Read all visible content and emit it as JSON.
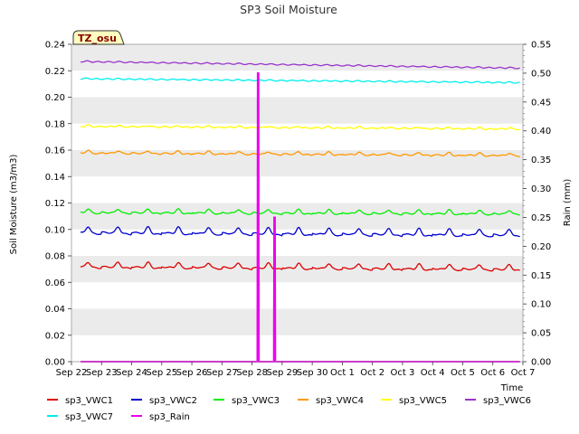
{
  "chart_data": {
    "type": "line",
    "title": "SP3 Soil Moisture",
    "badge": "TZ_osu",
    "xlabel": "Time",
    "ylabel": "Soil Moisture (m3/m3)",
    "y2label": "Rain (mm)",
    "x_tick_labels": [
      "Sep 22",
      "Sep 23",
      "Sep 24",
      "Sep 25",
      "Sep 26",
      "Sep 27",
      "Sep 28",
      "Sep 29",
      "Sep 30",
      "Oct 1",
      "Oct 2",
      "Oct 3",
      "Oct 4",
      "Oct 5",
      "Oct 6",
      "Oct 7"
    ],
    "x_range_days": [
      0,
      15
    ],
    "ylim": [
      0,
      0.24
    ],
    "y_ticks": [
      "0.00",
      "0.02",
      "0.04",
      "0.06",
      "0.08",
      "0.10",
      "0.12",
      "0.14",
      "0.16",
      "0.18",
      "0.20",
      "0.22",
      "0.24"
    ],
    "y2lim": [
      0,
      0.55
    ],
    "y2_ticks": [
      "0.00",
      "0.05",
      "0.10",
      "0.15",
      "0.20",
      "0.25",
      "0.30",
      "0.35",
      "0.40",
      "0.45",
      "0.50",
      "0.55"
    ],
    "grid": "horizontal bands",
    "legend_position": "bottom",
    "series": [
      {
        "name": "sp3_VWC1",
        "color": "#dd0000",
        "axis": "left",
        "base": 0.072,
        "trend": -0.002,
        "amp": 0.004,
        "start": 0.3,
        "end": 14.9
      },
      {
        "name": "sp3_VWC2",
        "color": "#0000cc",
        "axis": "left",
        "base": 0.098,
        "trend": -0.002,
        "amp": 0.005,
        "start": 0.3,
        "end": 14.9
      },
      {
        "name": "sp3_VWC3",
        "color": "#00ee00",
        "axis": "left",
        "base": 0.113,
        "trend": -0.001,
        "amp": 0.003,
        "start": 0.3,
        "end": 14.9
      },
      {
        "name": "sp3_VWC4",
        "color": "#ff9900",
        "axis": "left",
        "base": 0.158,
        "trend": -0.002,
        "amp": 0.002,
        "start": 0.3,
        "end": 14.9
      },
      {
        "name": "sp3_VWC5",
        "color": "#ffff00",
        "axis": "left",
        "base": 0.178,
        "trend": -0.002,
        "amp": 0.001,
        "start": 0.3,
        "end": 14.9
      },
      {
        "name": "sp3_VWC6",
        "color": "#9933cc",
        "axis": "left",
        "base": 0.227,
        "trend": -0.005,
        "amp": 0.0003,
        "start": 0.3,
        "end": 14.9
      },
      {
        "name": "sp3_VWC7",
        "color": "#00eeee",
        "axis": "left",
        "base": 0.214,
        "trend": -0.003,
        "amp": 0.0003,
        "start": 0.3,
        "end": 14.9
      },
      {
        "name": "sp3_Rain",
        "color": "#ee00ee",
        "axis": "right",
        "start": 0.3,
        "end": 14.9,
        "spikes": [
          {
            "x": 6.2,
            "y": 0.5
          },
          {
            "x": 6.75,
            "y": 0.25
          }
        ]
      }
    ]
  }
}
